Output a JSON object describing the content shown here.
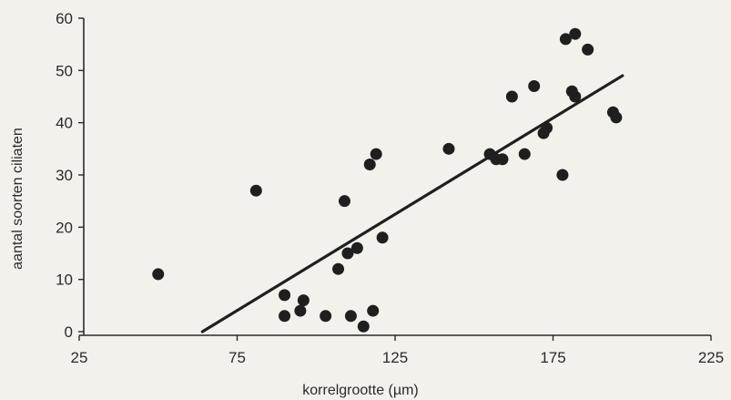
{
  "chart_data": {
    "type": "scatter",
    "xlabel": "korrelgrootte (µm)",
    "ylabel": "aantal soorten ciliaten",
    "xlim": [
      25,
      225
    ],
    "ylim": [
      0,
      60
    ],
    "xticks": [
      25,
      75,
      125,
      175,
      225
    ],
    "yticks": [
      0,
      10,
      20,
      30,
      40,
      50,
      60
    ],
    "grid": false,
    "legend": "none",
    "points": [
      {
        "x": 50,
        "y": 11
      },
      {
        "x": 81,
        "y": 27
      },
      {
        "x": 90,
        "y": 7
      },
      {
        "x": 90,
        "y": 3
      },
      {
        "x": 95,
        "y": 4
      },
      {
        "x": 96,
        "y": 6
      },
      {
        "x": 103,
        "y": 3
      },
      {
        "x": 107,
        "y": 12
      },
      {
        "x": 109,
        "y": 25
      },
      {
        "x": 110,
        "y": 15
      },
      {
        "x": 111,
        "y": 3
      },
      {
        "x": 113,
        "y": 16
      },
      {
        "x": 115,
        "y": 1
      },
      {
        "x": 117,
        "y": 32
      },
      {
        "x": 118,
        "y": 4
      },
      {
        "x": 119,
        "y": 34
      },
      {
        "x": 121,
        "y": 18
      },
      {
        "x": 142,
        "y": 35
      },
      {
        "x": 155,
        "y": 34
      },
      {
        "x": 157,
        "y": 33
      },
      {
        "x": 159,
        "y": 33
      },
      {
        "x": 162,
        "y": 45
      },
      {
        "x": 166,
        "y": 34
      },
      {
        "x": 169,
        "y": 47
      },
      {
        "x": 172,
        "y": 38
      },
      {
        "x": 173,
        "y": 39
      },
      {
        "x": 178,
        "y": 30
      },
      {
        "x": 179,
        "y": 56
      },
      {
        "x": 181,
        "y": 46
      },
      {
        "x": 182,
        "y": 45
      },
      {
        "x": 182,
        "y": 57
      },
      {
        "x": 186,
        "y": 54
      },
      {
        "x": 194,
        "y": 42
      },
      {
        "x": 195,
        "y": 41
      }
    ],
    "trendline": {
      "x": [
        64,
        197
      ],
      "y": [
        0,
        49
      ]
    },
    "colors": {
      "points": "#1f1f1f",
      "axis": "#2a2a2a"
    }
  }
}
